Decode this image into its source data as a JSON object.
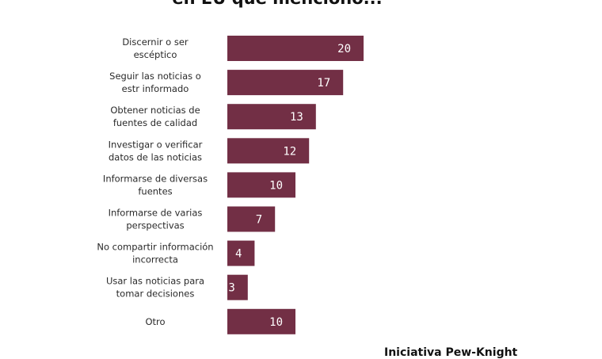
{
  "chart_data": {
    "type": "bar",
    "orientation": "horizontal",
    "title": "en EU que mencionó...",
    "categories": [
      [
        "Discernir o ser",
        "escéptico"
      ],
      [
        "Seguir las noticias o",
        "estr informado"
      ],
      [
        "Obtener noticias de",
        "fuentes de calidad"
      ],
      [
        "Investigar o verificar",
        "datos de las noticias"
      ],
      [
        "Informarse de diversas",
        "fuentes"
      ],
      [
        "Informarse de varias",
        "perspectivas"
      ],
      [
        "No compartir información",
        "incorrecta"
      ],
      [
        "Usar las noticias para",
        "tomar decisiones"
      ],
      [
        "Otro"
      ]
    ],
    "values": [
      20,
      17,
      13,
      12,
      10,
      7,
      4,
      3,
      10
    ],
    "xlim": [
      0,
      20
    ],
    "grid": false,
    "bar_color": "#722F45"
  },
  "footer": "Iniciativa Pew-Knight"
}
